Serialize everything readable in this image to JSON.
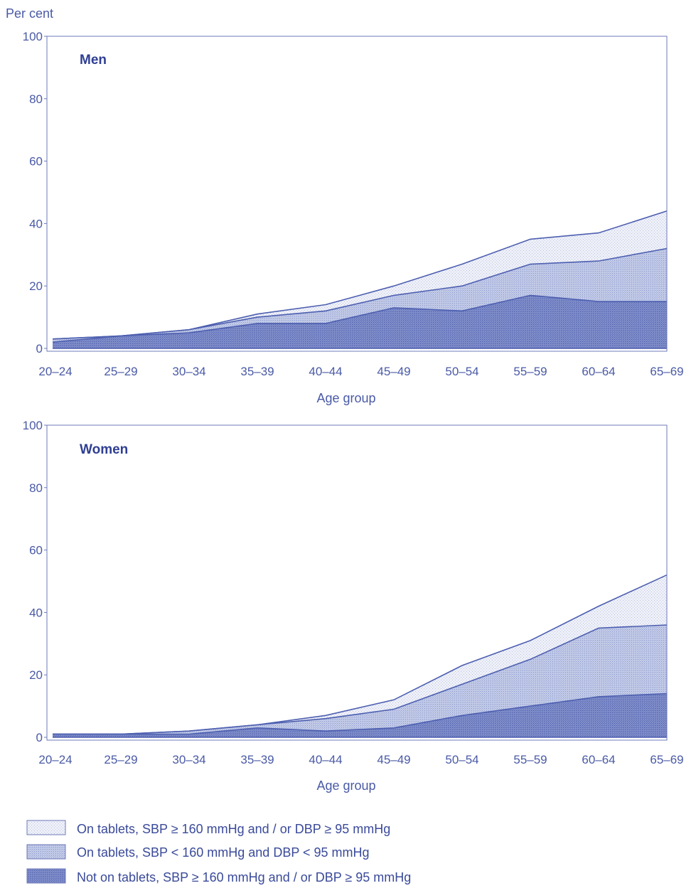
{
  "y_unit_label": "Per cent",
  "legend": [
    {
      "label": "On tablets, SBP ≥ 160 mmHg and  / or DBP ≥ 95 mmHg",
      "pattern": "light"
    },
    {
      "label": "On tablets, SBP < 160 mmHg and DBP < 95 mmHg",
      "pattern": "medium"
    },
    {
      "label": "Not on tablets, SBP ≥ 160 mmHg and / or DBP ≥ 95 mmHg",
      "pattern": "dark"
    }
  ],
  "colors": {
    "line": "#4d5fb0",
    "light": "#eaedf6",
    "medium": "#b6c0df",
    "dark": "#6f7fc2",
    "text": "#4a5aa6"
  },
  "chart_data": [
    {
      "type": "area",
      "title": "Men",
      "xlabel": "Age group",
      "ylabel": "Per cent",
      "ylim": [
        0,
        100
      ],
      "yticks": [
        0,
        20,
        40,
        60,
        80,
        100
      ],
      "categories": [
        "20–24",
        "25–29",
        "30–34",
        "35–39",
        "40–44",
        "45–49",
        "50–54",
        "55–59",
        "60–64",
        "65–69"
      ],
      "stacked": false,
      "series": [
        {
          "name": "On tablets, SBP ≥ 160 mmHg and  / or DBP ≥ 95 mmHg",
          "values": [
            3,
            4,
            6,
            11,
            14,
            20,
            27,
            35,
            37,
            44
          ]
        },
        {
          "name": "On tablets, SBP < 160 mmHg and DBP < 95 mmHg",
          "values": [
            3,
            4,
            6,
            10,
            12,
            17,
            20,
            27,
            28,
            32
          ]
        },
        {
          "name": "Not on tablets, SBP ≥ 160 mmHg and / or DBP ≥ 95 mmHg",
          "values": [
            2,
            4,
            5,
            8,
            8,
            13,
            12,
            17,
            15,
            15
          ]
        }
      ]
    },
    {
      "type": "area",
      "title": "Women",
      "xlabel": "Age group",
      "ylabel": "Per cent",
      "ylim": [
        0,
        100
      ],
      "yticks": [
        0,
        20,
        40,
        60,
        80,
        100
      ],
      "categories": [
        "20–24",
        "25–29",
        "30–34",
        "35–39",
        "40–44",
        "45–49",
        "50–54",
        "55–59",
        "60–64",
        "65–69"
      ],
      "stacked": false,
      "series": [
        {
          "name": "On tablets, SBP ≥ 160 mmHg and  / or DBP ≥ 95 mmHg",
          "values": [
            1,
            1,
            2,
            4,
            7,
            12,
            23,
            31,
            42,
            52
          ]
        },
        {
          "name": "On tablets, SBP < 160 mmHg and DBP < 95 mmHg",
          "values": [
            1,
            1,
            2,
            4,
            6,
            9,
            17,
            25,
            35,
            36
          ]
        },
        {
          "name": "Not on tablets, SBP ≥ 160 mmHg and / or DBP ≥ 95 mmHg",
          "values": [
            1,
            1,
            1,
            3,
            2,
            3,
            7,
            10,
            13,
            14
          ]
        }
      ]
    }
  ]
}
